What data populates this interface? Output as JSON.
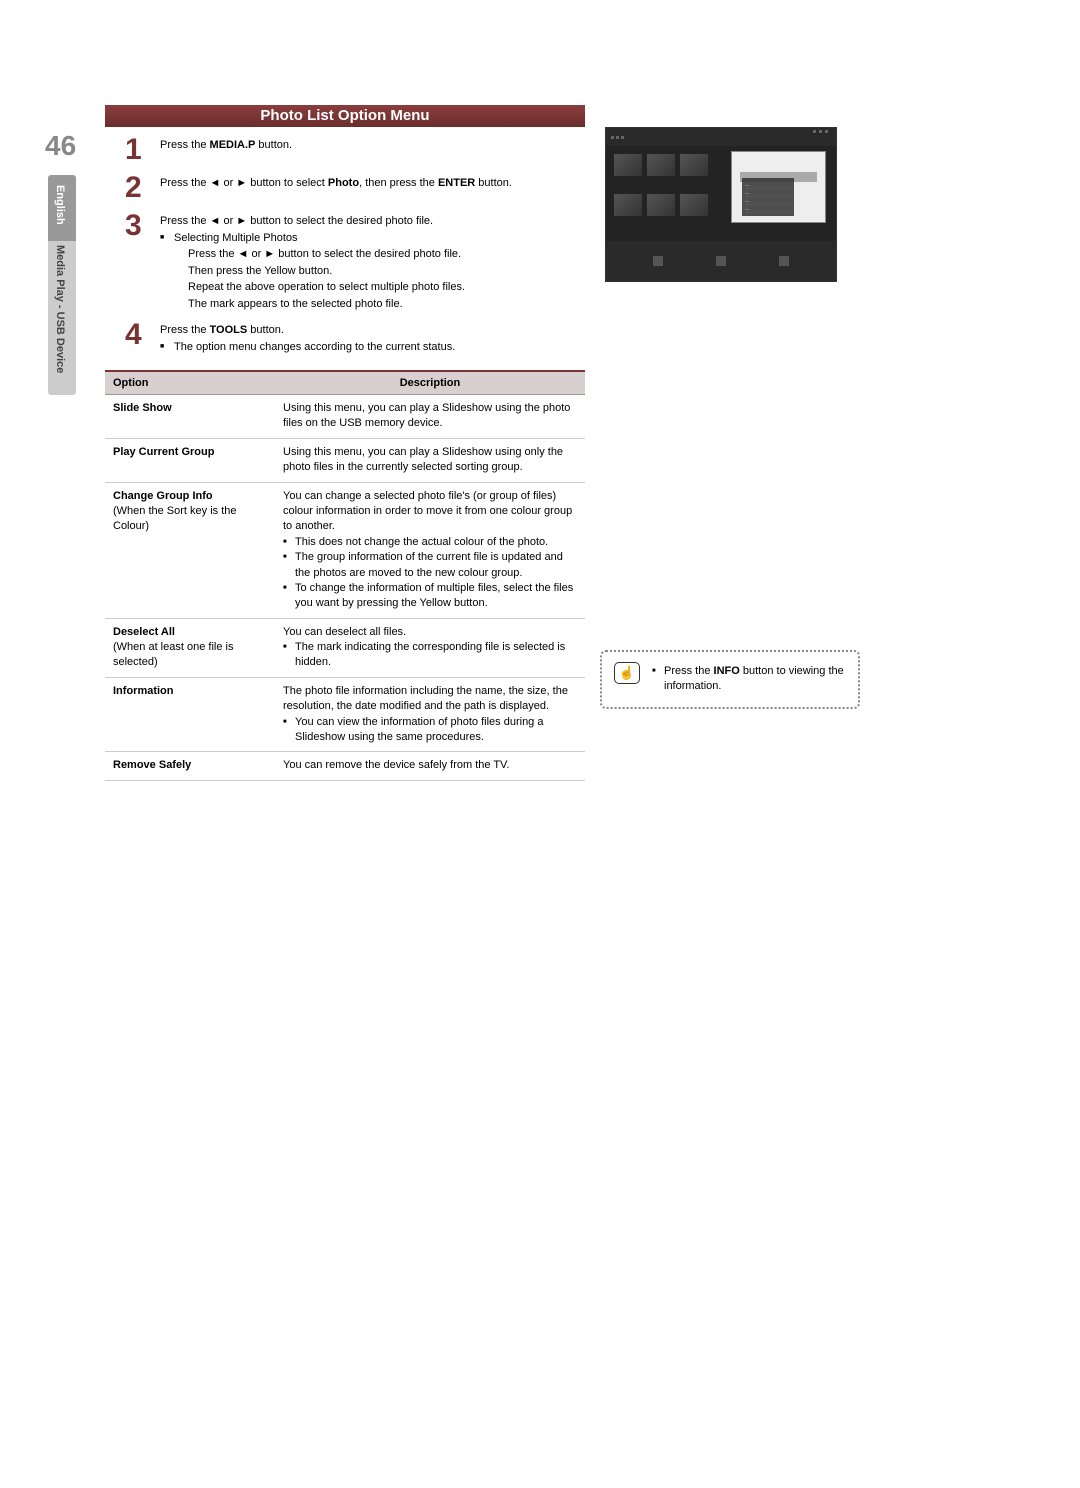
{
  "page": {
    "number": "46",
    "side_lang": "English",
    "side_section": "Media Play - USB Device",
    "title": "Photo List Option Menu"
  },
  "steps": {
    "s1": {
      "num": "1",
      "text_pre": "Press the ",
      "bold": "MEDIA.P",
      "text_post": " button."
    },
    "s2": {
      "num": "2",
      "text_pre": "Press the ◄ or ► button to select ",
      "bold1": "Photo",
      "text_mid": ", then press the ",
      "bold2": "ENTER",
      "text_post": "       button."
    },
    "s3": {
      "num": "3",
      "line1": "Press the ◄ or ► button to select the desired photo file.",
      "bullet_title": "Selecting Multiple Photos",
      "sub1": "Press the ◄ or ► button to select the desired photo file.",
      "sub2": "Then press the Yellow button.",
      "sub3": "Repeat the above operation to select multiple photo files.",
      "sub4": "The mark      appears to the selected photo file."
    },
    "s4": {
      "num": "4",
      "text_pre": "Press the ",
      "bold": "TOOLS",
      "text_post": " button.",
      "bullet": "The option menu changes according to the current status."
    }
  },
  "table": {
    "header_option": "Option",
    "header_desc": "Description",
    "rows": {
      "r1": {
        "opt": "Slide Show",
        "desc": "Using this menu, you can play a Slideshow using the photo files on the USB memory device."
      },
      "r2": {
        "opt": "Play Current Group",
        "desc": "Using this menu, you can play a Slideshow using only the photo files in the currently selected sorting group."
      },
      "r3": {
        "opt": "Change Group Info",
        "opt_sub": "(When the Sort key is the Colour)",
        "desc_main": "You can change a selected photo file's (or group of files) colour information in order to move it from one colour group to another.",
        "b1": "This does not change the actual colour of the photo.",
        "b2": "The group information of the current file is updated and the photos are moved to the new colour group.",
        "b3": "To change the information of multiple files, select the files you want by pressing the Yellow button."
      },
      "r4": {
        "opt": "Deselect All",
        "opt_sub": "(When at least one file is selected)",
        "desc_main": "You can deselect all files.",
        "b1": "The      mark indicating the corresponding file is selected is hidden."
      },
      "r5": {
        "opt": "Information",
        "desc_main": "The photo file information including the name, the size, the resolution, the date modified and the path is displayed.",
        "b1": "You can view the information of photo files during a Slideshow using the same procedures."
      },
      "r6": {
        "opt": "Remove Safely",
        "desc": "You can remove the device safely from the TV."
      }
    }
  },
  "info_box": {
    "text_pre": "Press the ",
    "bold": "INFO",
    "text_post": " button to viewing the information."
  }
}
